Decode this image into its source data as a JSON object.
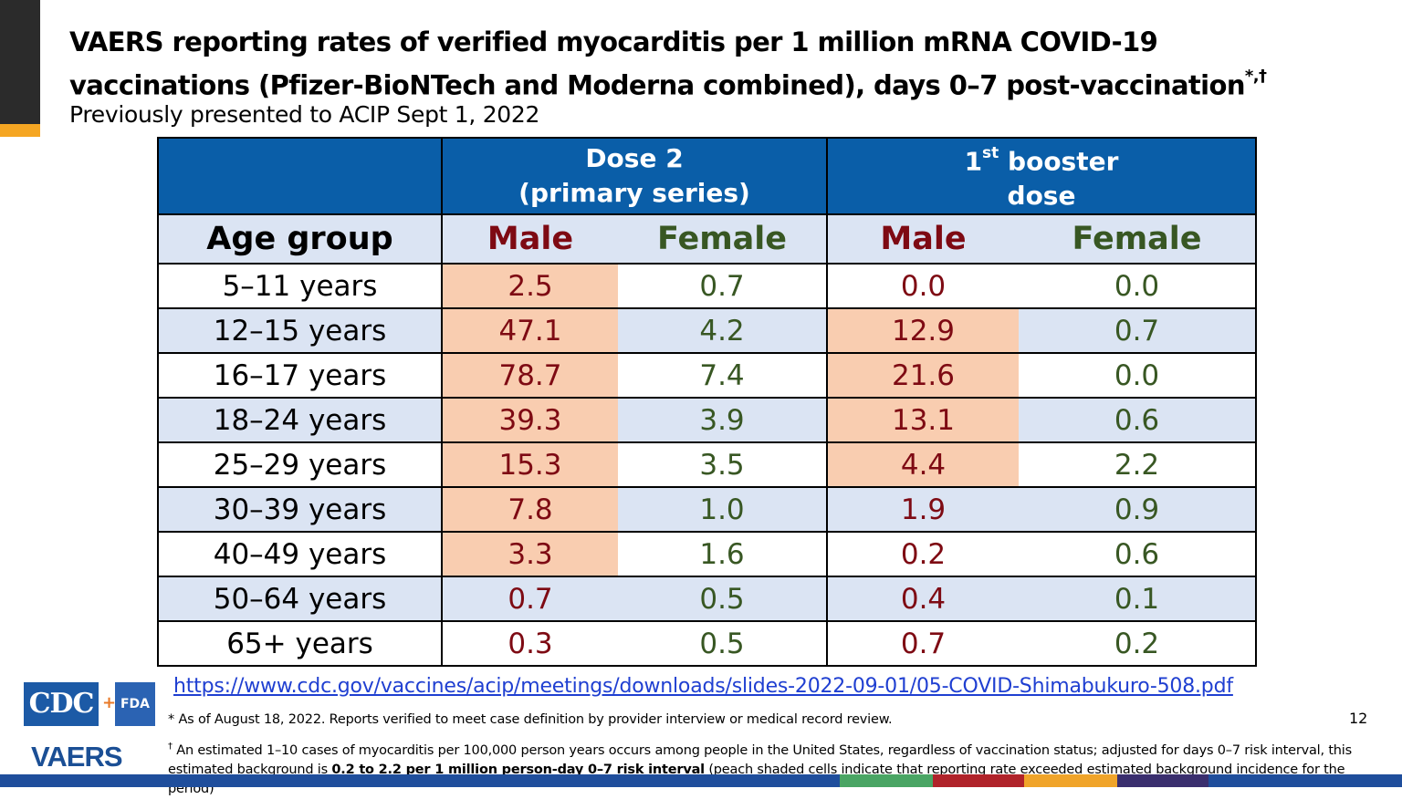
{
  "slide": {
    "title_line1": "VAERS reporting rates of verified myocarditis per 1 million mRNA COVID-19",
    "title_line2": "vaccinations (Pfizer-BioNTech and Moderna combined), days 0–7 post-vaccination",
    "title_sup": "*,†",
    "subtitle": "Previously presented to ACIP Sept 1, 2022",
    "page_number": "12"
  },
  "table": {
    "dose2_line1": "Dose 2",
    "dose2_line2": "(primary series)",
    "booster_sup_base": "1",
    "booster_sup": "st",
    "booster_line1_rest": " booster",
    "booster_line2": "dose",
    "col_age": "Age group",
    "col_male": "Male",
    "col_female": "Female",
    "rows": [
      {
        "age": "5–11 years",
        "d2_male": "2.5",
        "d2_female": "0.7",
        "b_male": "0.0",
        "b_female": "0.0"
      },
      {
        "age": "12–15 years",
        "d2_male": "47.1",
        "d2_female": "4.2",
        "b_male": "12.9",
        "b_female": "0.7"
      },
      {
        "age": "16–17 years",
        "d2_male": "78.7",
        "d2_female": "7.4",
        "b_male": "21.6",
        "b_female": "0.0"
      },
      {
        "age": "18–24 years",
        "d2_male": "39.3",
        "d2_female": "3.9",
        "b_male": "13.1",
        "b_female": "0.6"
      },
      {
        "age": "25–29 years",
        "d2_male": "15.3",
        "d2_female": "3.5",
        "b_male": "4.4",
        "b_female": "2.2"
      },
      {
        "age": "30–39 years",
        "d2_male": "7.8",
        "d2_female": "1.0",
        "b_male": "1.9",
        "b_female": "0.9"
      },
      {
        "age": "40–49 years",
        "d2_male": "3.3",
        "d2_female": "1.6",
        "b_male": "0.2",
        "b_female": "0.6"
      },
      {
        "age": "50–64 years",
        "d2_male": "0.7",
        "d2_female": "0.5",
        "b_male": "0.4",
        "b_female": "0.1"
      },
      {
        "age": "65+ years",
        "d2_male": "0.3",
        "d2_female": "0.5",
        "b_male": "0.7",
        "b_female": "0.2"
      }
    ]
  },
  "footer": {
    "link": "https://www.cdc.gov/vaccines/acip/meetings/downloads/slides-2022-09-01/05-COVID-Shimabukuro-508.pdf",
    "note1": "* As of August 18, 2022. Reports verified to meet case definition by provider interview or medical record review.",
    "note2_sup": "†",
    "note2_part1": " An estimated 1–10 cases of myocarditis per 100,000 person years occurs among people in the United States, regardless of vaccination status; adjusted for days 0–7 risk interval, this estimated background is ",
    "note2_bold": "0.2 to 2.2 per 1 million person-day 0–7 risk interval",
    "note2_part2": " (peach shaded cells indicate that reporting rate exceeded estimated background incidence for the period)",
    "logo_cdc": "CDC",
    "logo_plus": "+",
    "logo_fda": "FDA",
    "logo_vaers": "VAERS"
  },
  "colors": {
    "header_blue": "#0a5ea8",
    "band_blue": "#dbe4f3",
    "peach": "#f9cdb0",
    "male_text": "#7e0a13",
    "female_text": "#385723",
    "accent_gold": "#f5a623"
  }
}
